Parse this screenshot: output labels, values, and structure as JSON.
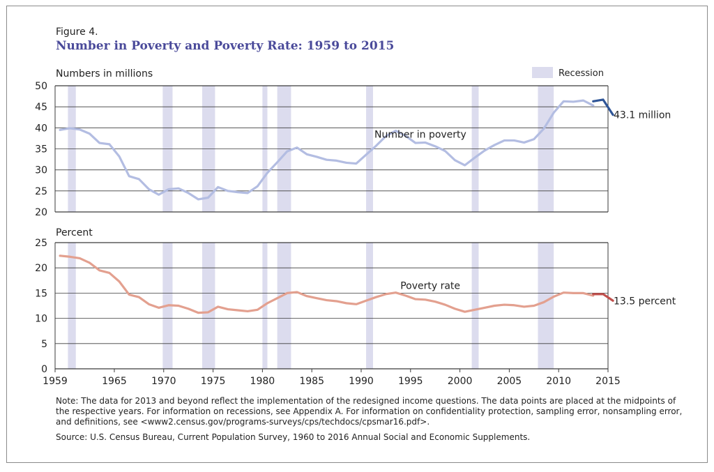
{
  "figure_label": "Figure 4.",
  "title": "Number in Poverty and Poverty Rate: 1959 to 2015",
  "legend_label": "Recession",
  "note": "Note: The data for 2013 and beyond reflect the implementation of the redesigned income questions. The data points are placed at the midpoints of the respective years. For information on recessions, see Appendix A. For information on confidentiality protection, sampling error, nonsampling error, and definitions, see <www2.census.gov/programs-surveys/cps/techdocs/cpsmar16.pdf>.",
  "source": "Source: U.S. Census Bureau, Current Population Survey, 1960 to 2016 Annual Social and Economic Supplements.",
  "colors": {
    "title": "#4a4a9a",
    "recession": "#dcdcee",
    "number_line": "#b3bde2",
    "number_line_new": "#2f5597",
    "rate_line": "#e3a08f",
    "rate_line_new": "#c0504d",
    "grid": "#3a3a3a"
  },
  "chart_data": [
    {
      "type": "line",
      "ylabel": "Numbers in millions",
      "ylim": [
        20,
        50
      ],
      "yticks": [
        20,
        25,
        30,
        35,
        40,
        45,
        50
      ],
      "xlim": [
        1959,
        2015
      ],
      "xticks": [
        1959,
        1965,
        1970,
        1975,
        1980,
        1985,
        1990,
        1995,
        2000,
        2005,
        2010,
        2015
      ],
      "recessions": [
        [
          1960.3,
          1961.1
        ],
        [
          1969.9,
          1970.9
        ],
        [
          1973.9,
          1975.2
        ],
        [
          1980.0,
          1980.5
        ],
        [
          1981.5,
          1982.9
        ],
        [
          1990.5,
          1991.2
        ],
        [
          2001.2,
          2001.9
        ],
        [
          2007.9,
          2009.5
        ]
      ],
      "series": [
        {
          "name": "Number in poverty",
          "values": [
            [
              1959.5,
              39.5
            ],
            [
              1960.5,
              39.9
            ],
            [
              1961.5,
              39.6
            ],
            [
              1962.5,
              38.6
            ],
            [
              1963.5,
              36.4
            ],
            [
              1964.5,
              36.1
            ],
            [
              1965.5,
              33.2
            ],
            [
              1966.5,
              28.5
            ],
            [
              1967.5,
              27.8
            ],
            [
              1968.5,
              25.4
            ],
            [
              1969.5,
              24.1
            ],
            [
              1970.5,
              25.4
            ],
            [
              1971.5,
              25.6
            ],
            [
              1972.5,
              24.5
            ],
            [
              1973.5,
              23.0
            ],
            [
              1974.5,
              23.4
            ],
            [
              1975.5,
              25.9
            ],
            [
              1976.5,
              25.0
            ],
            [
              1977.5,
              24.7
            ],
            [
              1978.5,
              24.5
            ],
            [
              1979.5,
              26.1
            ],
            [
              1980.5,
              29.3
            ],
            [
              1981.5,
              31.8
            ],
            [
              1982.5,
              34.4
            ],
            [
              1983.5,
              35.3
            ],
            [
              1984.5,
              33.7
            ],
            [
              1985.5,
              33.1
            ],
            [
              1986.5,
              32.4
            ],
            [
              1987.5,
              32.2
            ],
            [
              1988.5,
              31.7
            ],
            [
              1989.5,
              31.5
            ],
            [
              1990.5,
              33.6
            ],
            [
              1991.5,
              35.7
            ],
            [
              1992.5,
              38.0
            ],
            [
              1993.5,
              39.3
            ],
            [
              1994.5,
              38.1
            ],
            [
              1995.5,
              36.4
            ],
            [
              1996.5,
              36.5
            ],
            [
              1997.5,
              35.6
            ],
            [
              1998.5,
              34.5
            ],
            [
              1999.5,
              32.3
            ],
            [
              2000.5,
              31.1
            ],
            [
              2001.5,
              32.9
            ],
            [
              2002.5,
              34.6
            ],
            [
              2003.5,
              35.9
            ],
            [
              2004.5,
              37.0
            ],
            [
              2005.5,
              37.0
            ],
            [
              2006.5,
              36.5
            ],
            [
              2007.5,
              37.3
            ],
            [
              2008.5,
              39.8
            ],
            [
              2009.5,
              43.6
            ],
            [
              2010.5,
              46.3
            ],
            [
              2011.5,
              46.2
            ],
            [
              2012.5,
              46.5
            ],
            [
              2013.5,
              45.3
            ]
          ]
        },
        {
          "name": "",
          "values": [
            [
              2013.5,
              46.3
            ],
            [
              2014.5,
              46.7
            ],
            [
              2015.5,
              43.1
            ]
          ]
        }
      ],
      "annotations": [
        {
          "text": "Number in poverty",
          "x": 1996,
          "y": 38.5
        },
        {
          "text": "43.1 million",
          "x": 2016.5,
          "y": 43.1
        }
      ]
    },
    {
      "type": "line",
      "ylabel": "Percent",
      "ylim": [
        0,
        25
      ],
      "yticks": [
        0,
        5,
        10,
        15,
        20,
        25
      ],
      "xlim": [
        1959,
        2015
      ],
      "xticks": [
        1959,
        1965,
        1970,
        1975,
        1980,
        1985,
        1990,
        1995,
        2000,
        2005,
        2010,
        2015
      ],
      "recessions": [
        [
          1960.3,
          1961.1
        ],
        [
          1969.9,
          1970.9
        ],
        [
          1973.9,
          1975.2
        ],
        [
          1980.0,
          1980.5
        ],
        [
          1981.5,
          1982.9
        ],
        [
          1990.5,
          1991.2
        ],
        [
          2001.2,
          2001.9
        ],
        [
          2007.9,
          2009.5
        ]
      ],
      "series": [
        {
          "name": "Poverty rate",
          "values": [
            [
              1959.5,
              22.4
            ],
            [
              1960.5,
              22.2
            ],
            [
              1961.5,
              21.9
            ],
            [
              1962.5,
              21.0
            ],
            [
              1963.5,
              19.5
            ],
            [
              1964.5,
              19.0
            ],
            [
              1965.5,
              17.3
            ],
            [
              1966.5,
              14.7
            ],
            [
              1967.5,
              14.2
            ],
            [
              1968.5,
              12.8
            ],
            [
              1969.5,
              12.1
            ],
            [
              1970.5,
              12.6
            ],
            [
              1971.5,
              12.5
            ],
            [
              1972.5,
              11.9
            ],
            [
              1973.5,
              11.1
            ],
            [
              1974.5,
              11.2
            ],
            [
              1975.5,
              12.3
            ],
            [
              1976.5,
              11.8
            ],
            [
              1977.5,
              11.6
            ],
            [
              1978.5,
              11.4
            ],
            [
              1979.5,
              11.7
            ],
            [
              1980.5,
              13.0
            ],
            [
              1981.5,
              14.0
            ],
            [
              1982.5,
              15.0
            ],
            [
              1983.5,
              15.2
            ],
            [
              1984.5,
              14.4
            ],
            [
              1985.5,
              14.0
            ],
            [
              1986.5,
              13.6
            ],
            [
              1987.5,
              13.4
            ],
            [
              1988.5,
              13.0
            ],
            [
              1989.5,
              12.8
            ],
            [
              1990.5,
              13.5
            ],
            [
              1991.5,
              14.2
            ],
            [
              1992.5,
              14.8
            ],
            [
              1993.5,
              15.1
            ],
            [
              1994.5,
              14.5
            ],
            [
              1995.5,
              13.8
            ],
            [
              1996.5,
              13.7
            ],
            [
              1997.5,
              13.3
            ],
            [
              1998.5,
              12.7
            ],
            [
              1999.5,
              11.9
            ],
            [
              2000.5,
              11.3
            ],
            [
              2001.5,
              11.7
            ],
            [
              2002.5,
              12.1
            ],
            [
              2003.5,
              12.5
            ],
            [
              2004.5,
              12.7
            ],
            [
              2005.5,
              12.6
            ],
            [
              2006.5,
              12.3
            ],
            [
              2007.5,
              12.5
            ],
            [
              2008.5,
              13.2
            ],
            [
              2009.5,
              14.3
            ],
            [
              2010.5,
              15.1
            ],
            [
              2011.5,
              15.0
            ],
            [
              2012.5,
              15.0
            ],
            [
              2013.5,
              14.5
            ]
          ]
        },
        {
          "name": "",
          "values": [
            [
              2013.5,
              14.8
            ],
            [
              2014.5,
              14.8
            ],
            [
              2015.5,
              13.5
            ]
          ]
        }
      ],
      "annotations": [
        {
          "text": "Poverty rate",
          "x": 1997,
          "y": 16.5
        },
        {
          "text": "13.5 percent",
          "x": 2016.5,
          "y": 13.5
        }
      ]
    }
  ]
}
